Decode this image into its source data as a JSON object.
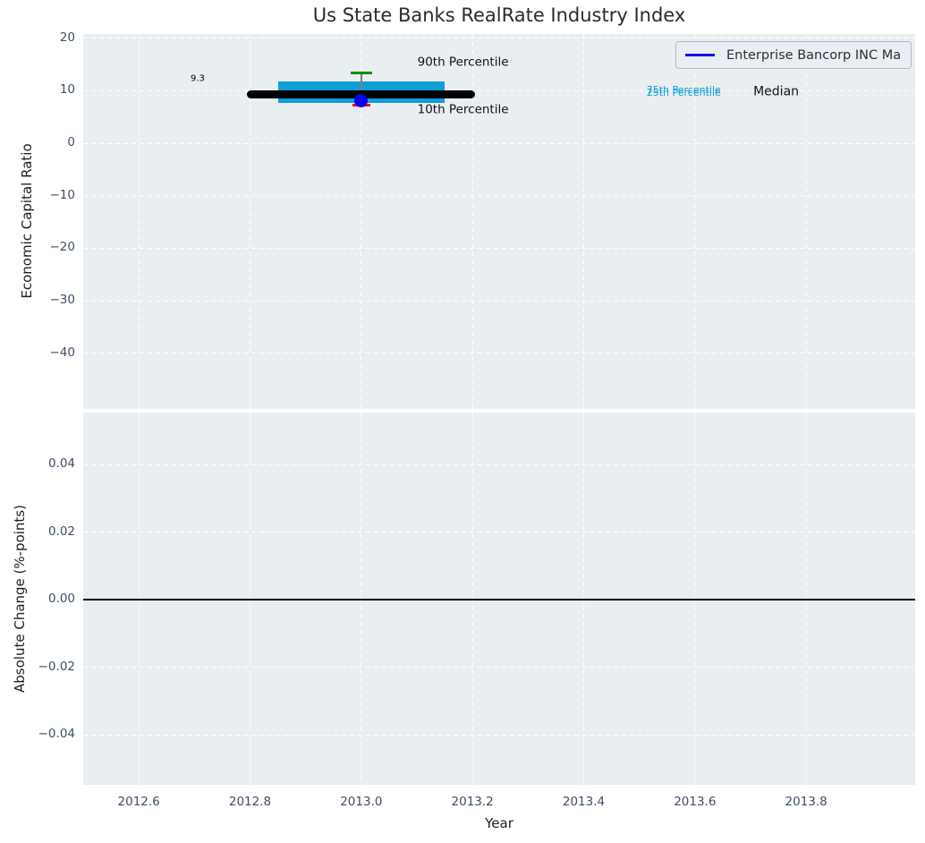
{
  "title": "Us State Banks RealRate Industry Index",
  "legend": {
    "label": "Enterprise Bancorp INC Ma",
    "line_color": "#0000ee"
  },
  "colors": {
    "figure_bg": "#ffffff",
    "plot_bg": "#e9eef0",
    "grid": "#ffffff",
    "tick_label": "#3d4e68",
    "title": "#2b2b2b",
    "axis_label": "#1f1f1f"
  },
  "chart_data": [
    {
      "type": "boxplot",
      "title": "Us State Banks RealRate Industry Index",
      "ylabel": "Economic Capital Ratio",
      "xlim": [
        2012.5,
        2013.996
      ],
      "ylim": [
        -50.6,
        20.8
      ],
      "grid": true,
      "legend_position": "upper right",
      "ytick_values": [
        20,
        10,
        0,
        -10,
        -20,
        -30,
        -40
      ],
      "ytick_labels": [
        "20",
        "10",
        "0",
        "−10",
        "−20",
        "−30",
        "−40"
      ],
      "xtick_values": [
        2012.6,
        2012.8,
        2013.0,
        2013.2,
        2013.4,
        2013.6,
        2013.8
      ],
      "xtick_labels": [
        "2012.6",
        "2012.8",
        "2013.0",
        "2013.2",
        "2013.4",
        "2013.6",
        "2013.8"
      ],
      "show_xtick_labels": false,
      "box": {
        "x": 2013.0,
        "median": 9.3,
        "q1": 7.7,
        "q3": 11.7,
        "p90": 13.4,
        "p10": 7.3,
        "company_value": 8.1,
        "median_half_width": 0.205,
        "box_half_width": 0.15,
        "p90_cap_half_width": 0.019,
        "p10_cap_half_width": 0.016,
        "colors": {
          "box": "#0f9ed5",
          "median": "#000000",
          "whisker": "#7f7f7f",
          "p90_cap": "#089000",
          "p10_cap": "#ff0000",
          "company_marker": "#0000ee"
        }
      },
      "annotations": [
        {
          "text": "9.3",
          "x": 2012.693,
          "y": 12.2,
          "color": "#000000",
          "size": 10
        },
        {
          "text": "90th Percentile",
          "x": 2013.101,
          "y": 15.3,
          "color": "#111111",
          "size": 13.5
        },
        {
          "text": "10th Percentile",
          "x": 2013.101,
          "y": 6.3,
          "color": "#111111",
          "size": 13.5
        },
        {
          "text": "75th Percentile",
          "x": 2013.513,
          "y": 10.0,
          "color": "#0f9ed5",
          "size": 11
        },
        {
          "text": "25th Percentile",
          "x": 2013.513,
          "y": 9.5,
          "color": "#0f9ed5",
          "size": 11
        },
        {
          "text": "Median",
          "x": 2013.705,
          "y": 9.7,
          "color": "#111111",
          "size": 14
        }
      ]
    },
    {
      "type": "line",
      "ylabel": "Absolute Change (%-points)",
      "xlabel": "Year",
      "xlim": [
        2012.5,
        2013.996
      ],
      "ylim": [
        -0.0548,
        0.0554
      ],
      "grid": true,
      "ytick_values": [
        0.04,
        0.02,
        0.0,
        -0.02,
        -0.04
      ],
      "ytick_labels": [
        "0.04",
        "0.02",
        "0.00",
        "−0.02",
        "−0.04"
      ],
      "xtick_values": [
        2012.6,
        2012.8,
        2013.0,
        2013.2,
        2013.4,
        2013.6,
        2013.8
      ],
      "xtick_labels": [
        "2012.6",
        "2012.8",
        "2013.0",
        "2013.2",
        "2013.4",
        "2013.6",
        "2013.8"
      ],
      "show_xtick_labels": true,
      "zero_line": {
        "y": 0,
        "color": "#000000",
        "width": 2
      },
      "series": []
    }
  ]
}
